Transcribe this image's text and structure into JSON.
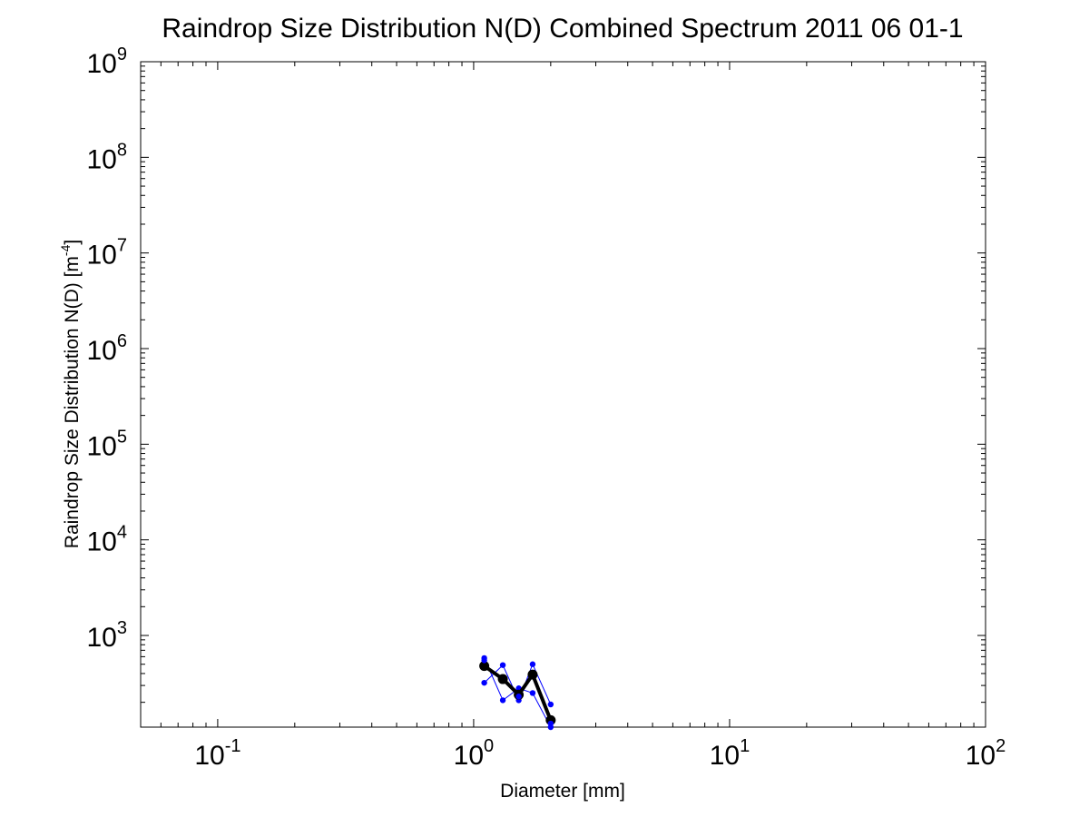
{
  "chart_data": {
    "type": "line",
    "title": "Raindrop Size Distribution N(D) Combined Spectrum 2011 06 01-1",
    "xlabel": "Diameter [mm]",
    "ylabel": "Raindrop Size Distribution N(D) [m",
    "ylabel_sup": "-4",
    "ylabel_close": "]",
    "x_scale": "log",
    "y_scale": "log",
    "xlim": [
      0.05,
      100
    ],
    "ylim": [
      110,
      1000000000
    ],
    "x_ticks": [
      {
        "value": 0.1,
        "base": "10",
        "exp": "-1"
      },
      {
        "value": 1,
        "base": "10",
        "exp": "0"
      },
      {
        "value": 10,
        "base": "10",
        "exp": "1"
      },
      {
        "value": 100,
        "base": "10",
        "exp": "2"
      }
    ],
    "y_ticks": [
      {
        "value": 1000,
        "base": "10",
        "exp": "3"
      },
      {
        "value": 10000,
        "base": "10",
        "exp": "4"
      },
      {
        "value": 100000,
        "base": "10",
        "exp": "5"
      },
      {
        "value": 1000000,
        "base": "10",
        "exp": "6"
      },
      {
        "value": 10000000,
        "base": "10",
        "exp": "7"
      },
      {
        "value": 100000000,
        "base": "10",
        "exp": "8"
      },
      {
        "value": 1000000000,
        "base": "10",
        "exp": "9"
      }
    ],
    "grid": false,
    "series": [
      {
        "color": "#0000ff",
        "style": "thin-line-dots",
        "x": [
          1.1,
          1.3,
          1.5,
          1.7,
          2.0
        ],
        "y": [
          580,
          210,
          280,
          250,
          110
        ]
      },
      {
        "color": "#0000ff",
        "style": "thin-line-dots",
        "x": [
          1.1,
          1.3,
          1.5,
          1.7,
          2.0
        ],
        "y": [
          320,
          490,
          210,
          500,
          190
        ]
      },
      {
        "color": "#000000",
        "style": "thick-line-dots",
        "x": [
          1.1,
          1.3,
          1.5,
          1.7,
          2.0
        ],
        "y": [
          480,
          350,
          240,
          390,
          130
        ]
      },
      {
        "color": "#0000ff",
        "style": "dots-only",
        "x": [
          1.1,
          1.5,
          2.0
        ],
        "y": [
          550,
          230,
          120
        ]
      }
    ]
  }
}
